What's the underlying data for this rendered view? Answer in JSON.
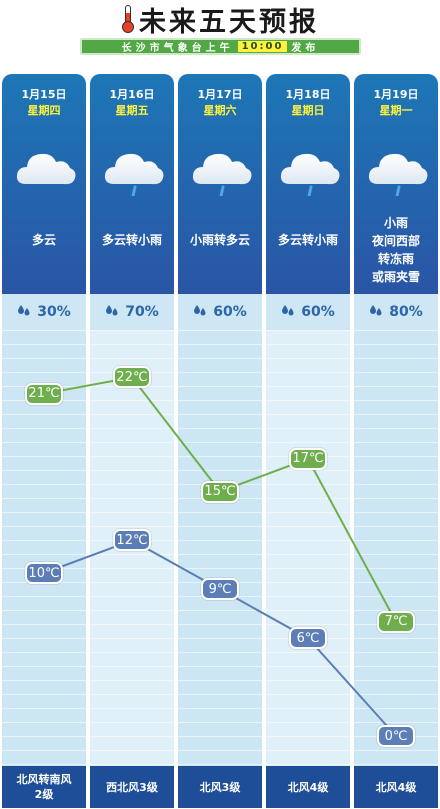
{
  "header": {
    "title": "未来五天预报",
    "subtitle_pre": "长沙市气象台上午",
    "subtitle_time": "10:00",
    "subtitle_post": "发布"
  },
  "colors": {
    "high_line": "#6fae4c",
    "low_line": "#5c7db5",
    "column_top": "#1d77b6",
    "wind_bar": "#1e4e97"
  },
  "days": [
    {
      "date": "1月15日",
      "weekday": "星期四",
      "weather": [
        "多云"
      ],
      "icon": "cloud-icon",
      "precip": "30%",
      "high": "21℃",
      "low": "10℃",
      "wind": [
        "北风转南风",
        "2级"
      ]
    },
    {
      "date": "1月16日",
      "weekday": "星期五",
      "weather": [
        "多云转小雨"
      ],
      "icon": "cloud-rain-icon",
      "precip": "70%",
      "high": "22℃",
      "low": "12℃",
      "wind": [
        "西北风3级"
      ]
    },
    {
      "date": "1月17日",
      "weekday": "星期六",
      "weather": [
        "小雨转多云"
      ],
      "icon": "cloud-rain-icon",
      "precip": "60%",
      "high": "15℃",
      "low": "9℃",
      "wind": [
        "北风3级"
      ]
    },
    {
      "date": "1月18日",
      "weekday": "星期日",
      "weather": [
        "多云转小雨"
      ],
      "icon": "cloud-rain-icon",
      "precip": "60%",
      "high": "17℃",
      "low": "6℃",
      "wind": [
        "北风4级"
      ]
    },
    {
      "date": "1月19日",
      "weekday": "星期一",
      "weather": [
        "小雨",
        "夜间西部",
        "转冻雨",
        "或雨夹雪"
      ],
      "icon": "cloud-rain-icon",
      "precip": "80%",
      "high": "7℃",
      "low": "0℃",
      "wind": [
        "北风4级"
      ]
    }
  ],
  "chart_data": {
    "type": "line",
    "categories": [
      "1月15日",
      "1月16日",
      "1月17日",
      "1月18日",
      "1月19日"
    ],
    "series": [
      {
        "values": [
          21,
          22,
          15,
          17,
          7
        ]
      },
      {
        "values": [
          10,
          12,
          9,
          6,
          0
        ]
      }
    ],
    "unit": "℃"
  }
}
